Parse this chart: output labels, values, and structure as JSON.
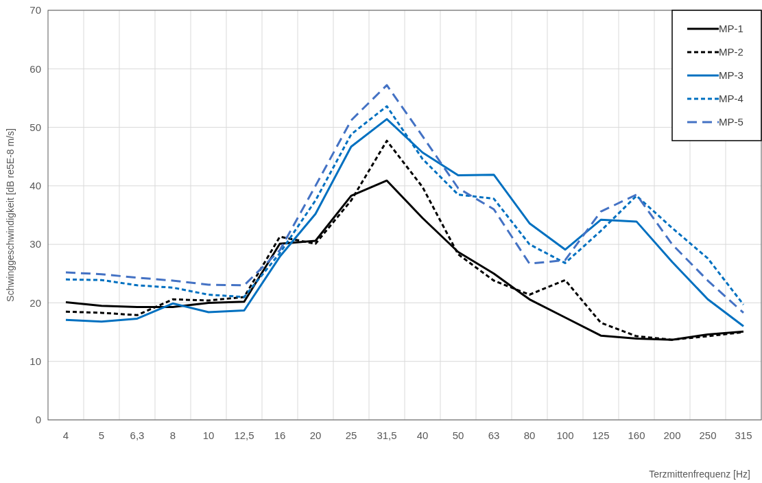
{
  "chart_data": {
    "type": "line",
    "xlabel": "Terzmittenfrequenz [Hz]",
    "ylabel": "Schwinggeschwindigkeit [dB re5E-8 m/s]",
    "categories": [
      "4",
      "5",
      "6,3",
      "8",
      "10",
      "12,5",
      "16",
      "20",
      "25",
      "31,5",
      "40",
      "50",
      "63",
      "80",
      "100",
      "125",
      "160",
      "200",
      "250",
      "315"
    ],
    "series": [
      {
        "name": "MP-1",
        "color": "#000000",
        "line_style": "solid",
        "values": [
          20.1,
          19.5,
          19.3,
          19.3,
          20.0,
          20.2,
          30.1,
          30.6,
          38.3,
          40.9,
          34.5,
          28.7,
          25.0,
          20.6,
          17.5,
          14.4,
          13.9,
          13.7,
          14.6,
          15.1
        ]
      },
      {
        "name": "MP-2",
        "color": "#000000",
        "line_style": "dotted",
        "values": [
          18.5,
          18.3,
          17.9,
          20.6,
          20.4,
          21.0,
          31.3,
          30.1,
          37.5,
          47.7,
          39.8,
          28.3,
          23.8,
          21.4,
          23.9,
          16.6,
          14.3,
          13.7,
          14.3,
          15.0
        ]
      },
      {
        "name": "MP-3",
        "color": "#0070c0",
        "line_style": "solid",
        "values": [
          17.1,
          16.8,
          17.3,
          19.9,
          18.4,
          18.7,
          27.9,
          35.2,
          46.7,
          51.4,
          45.7,
          41.8,
          41.9,
          33.6,
          29.1,
          34.2,
          33.9,
          27.0,
          20.6,
          16.0
        ]
      },
      {
        "name": "MP-4",
        "color": "#0070c0",
        "line_style": "dotted",
        "values": [
          24.0,
          23.9,
          23.0,
          22.6,
          21.4,
          21.0,
          28.5,
          37.5,
          48.8,
          53.6,
          44.6,
          38.5,
          37.8,
          30.0,
          26.8,
          32.3,
          38.3,
          32.8,
          27.6,
          19.7
        ]
      },
      {
        "name": "MP-5",
        "color": "#4472c4",
        "line_style": "dashed",
        "values": [
          25.2,
          24.9,
          24.3,
          23.8,
          23.1,
          23.0,
          29.0,
          40.0,
          51.2,
          57.2,
          48.5,
          39.6,
          36.0,
          26.7,
          27.3,
          35.6,
          38.5,
          30.0,
          23.8,
          18.3
        ]
      }
    ],
    "ylim": [
      0,
      70
    ],
    "yticks": [
      0,
      10,
      20,
      30,
      40,
      50,
      60,
      70
    ],
    "grid": true,
    "legend": "top right",
    "marker": "none"
  }
}
